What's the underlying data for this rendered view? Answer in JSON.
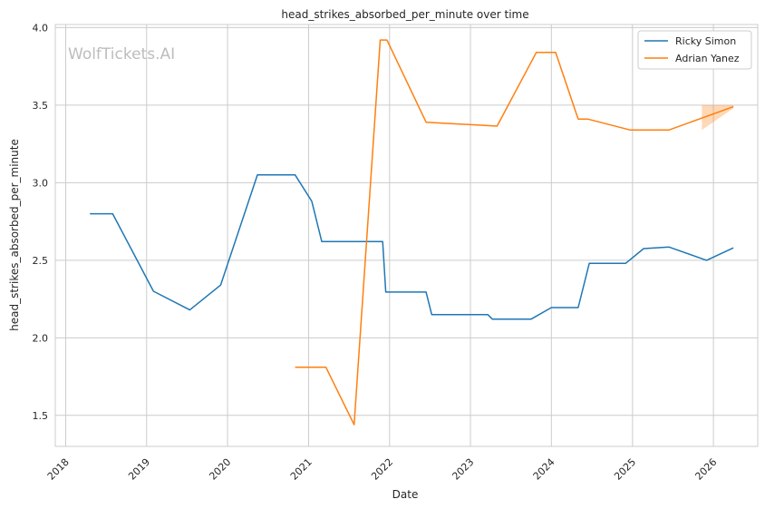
{
  "chart_data": {
    "type": "line",
    "title": "head_strikes_absorbed_per_minute over time",
    "xlabel": "Date",
    "ylabel": "head_strikes_absorbed_per_minute",
    "watermark": "WolfTickets.AI",
    "xlim": [
      "2017-11-15",
      "2026-07-20"
    ],
    "ylim": [
      1.3,
      4.02
    ],
    "x_ticks": [
      "2018-01-01",
      "2019-01-01",
      "2020-01-01",
      "2021-01-01",
      "2022-01-01",
      "2023-01-01",
      "2024-01-01",
      "2025-01-01",
      "2026-01-01"
    ],
    "x_tick_labels": [
      "2018",
      "2019",
      "2020",
      "2021",
      "2022",
      "2023",
      "2024",
      "2025",
      "2026"
    ],
    "y_ticks": [
      1.5,
      2.0,
      2.5,
      3.0,
      3.5,
      4.0
    ],
    "y_tick_labels": [
      "1.5",
      "2.0",
      "2.5",
      "3.0",
      "3.5",
      "4.0"
    ],
    "grid": true,
    "legend_position": "top-right",
    "series": [
      {
        "name": "Ricky Simon",
        "color": "#1f77b4",
        "points": [
          [
            "2018-04-20",
            2.8
          ],
          [
            "2018-08-01",
            2.8
          ],
          [
            "2019-02-01",
            2.3
          ],
          [
            "2019-07-15",
            2.18
          ],
          [
            "2019-12-01",
            2.34
          ],
          [
            "2020-05-15",
            3.05
          ],
          [
            "2020-11-01",
            3.05
          ],
          [
            "2021-01-15",
            2.88
          ],
          [
            "2021-03-01",
            2.62
          ],
          [
            "2021-12-01",
            2.62
          ],
          [
            "2021-12-15",
            2.295
          ],
          [
            "2022-06-15",
            2.295
          ],
          [
            "2022-07-10",
            2.15
          ],
          [
            "2023-03-20",
            2.15
          ],
          [
            "2023-04-10",
            2.12
          ],
          [
            "2023-10-01",
            2.12
          ],
          [
            "2024-01-01",
            2.195
          ],
          [
            "2024-05-01",
            2.195
          ],
          [
            "2024-06-20",
            2.48
          ],
          [
            "2024-12-01",
            2.48
          ],
          [
            "2025-02-20",
            2.575
          ],
          [
            "2025-06-15",
            2.585
          ],
          [
            "2025-12-01",
            2.5
          ],
          [
            "2026-04-01",
            2.58
          ]
        ]
      },
      {
        "name": "Adrian Yanez",
        "color": "#ff7f0e",
        "points": [
          [
            "2020-11-01",
            1.81
          ],
          [
            "2021-03-20",
            1.81
          ],
          [
            "2021-07-25",
            1.44
          ],
          [
            "2021-11-20",
            3.92
          ],
          [
            "2021-12-20",
            3.92
          ],
          [
            "2022-06-15",
            3.39
          ],
          [
            "2023-05-01",
            3.365
          ],
          [
            "2023-10-25",
            3.84
          ],
          [
            "2024-01-20",
            3.84
          ],
          [
            "2024-05-01",
            3.41
          ],
          [
            "2024-06-15",
            3.41
          ],
          [
            "2024-12-20",
            3.34
          ],
          [
            "2025-06-15",
            3.34
          ],
          [
            "2026-04-01",
            3.49
          ]
        ],
        "band": [
          [
            "2025-11-10",
            3.34,
            3.5
          ],
          [
            "2026-04-01",
            3.48,
            3.5
          ]
        ]
      }
    ]
  }
}
